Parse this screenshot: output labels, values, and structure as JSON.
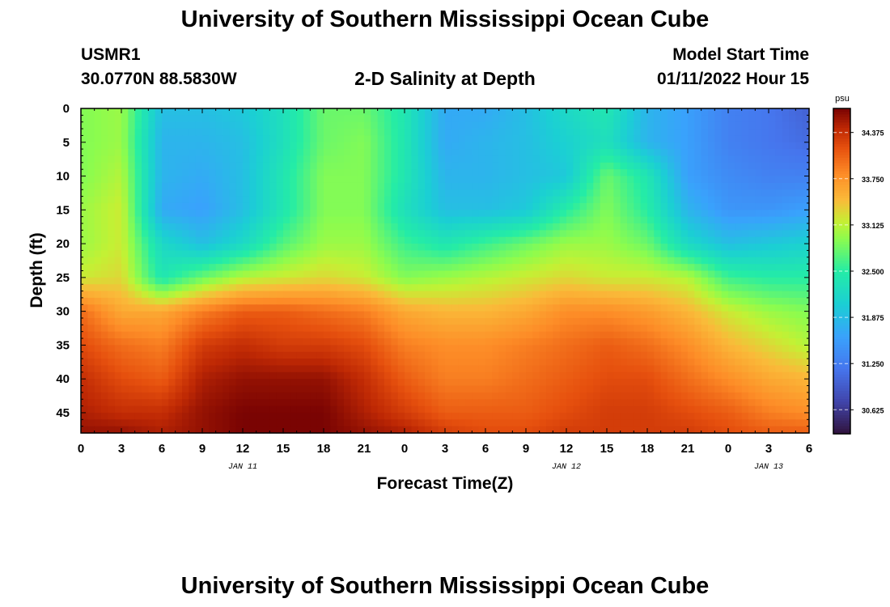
{
  "header": {
    "title": "University of Southern Mississippi Ocean Cube",
    "station_id": "USMR1",
    "location": "30.0770N  88.5830W",
    "chart_title": "2-D Salinity at Depth",
    "model_start_label": "Model Start Time",
    "model_start_value": "01/11/2022 Hour 15",
    "footer_title": "University of Southern Mississippi Ocean Cube"
  },
  "chart_data": {
    "type": "heatmap",
    "title": "2-D Salinity at Depth",
    "xlabel": "Forecast Time(Z)",
    "ylabel": "Depth (ft)",
    "x_tick_labels": [
      "0",
      "3",
      "6",
      "9",
      "12",
      "15",
      "18",
      "21",
      "0",
      "3",
      "6",
      "9",
      "12",
      "15",
      "18",
      "21",
      "0",
      "3",
      "6"
    ],
    "x_hours": [
      0,
      3,
      6,
      9,
      12,
      15,
      18,
      21,
      24,
      27,
      30,
      33,
      36,
      39,
      42,
      45,
      48,
      51,
      54
    ],
    "date_labels": [
      {
        "label": "JAN 11",
        "hour": 12
      },
      {
        "label": "JAN 12",
        "hour": 36
      },
      {
        "label": "JAN 13",
        "hour": 51
      }
    ],
    "y_tick_labels": [
      "0",
      "5",
      "10",
      "15",
      "20",
      "25",
      "30",
      "35",
      "40",
      "45"
    ],
    "y_ticks": [
      0,
      5,
      10,
      15,
      20,
      25,
      30,
      35,
      40,
      45
    ],
    "ylim": [
      0,
      48
    ],
    "xlim": [
      0,
      54
    ],
    "colorbar": {
      "unit": "psu",
      "range": [
        30.3,
        34.7
      ],
      "tick_values": [
        30.625,
        31.25,
        31.875,
        32.5,
        33.125,
        33.75,
        34.375
      ],
      "tick_labels": [
        "30.625",
        "31.250",
        "31.875",
        "32.500",
        "33.125",
        "33.750",
        "34.375"
      ]
    },
    "grid_hours": [
      0,
      3,
      6,
      9,
      12,
      15,
      18,
      21,
      24,
      27,
      30,
      33,
      36,
      39,
      42,
      45,
      48,
      51,
      54
    ],
    "grid_depths": [
      0,
      5,
      10,
      15,
      20,
      25,
      30,
      35,
      40,
      45,
      48
    ],
    "salinity": [
      [
        32.9,
        33.0,
        31.9,
        31.9,
        32.0,
        32.3,
        32.8,
        32.8,
        32.4,
        31.7,
        31.7,
        31.9,
        32.2,
        32.4,
        31.8,
        31.6,
        31.3,
        31.2,
        31.0
      ],
      [
        32.9,
        33.0,
        31.8,
        31.8,
        31.9,
        32.3,
        32.8,
        32.9,
        32.4,
        31.7,
        31.8,
        31.9,
        32.1,
        32.3,
        31.8,
        31.6,
        31.3,
        31.2,
        31.1
      ],
      [
        32.9,
        33.1,
        31.8,
        31.7,
        31.9,
        32.4,
        32.9,
        32.9,
        32.4,
        31.8,
        31.8,
        31.9,
        32.0,
        32.8,
        32.4,
        31.6,
        31.4,
        31.3,
        31.3
      ],
      [
        33.0,
        33.2,
        31.7,
        31.6,
        31.9,
        32.4,
        32.9,
        32.9,
        32.3,
        31.9,
        31.9,
        32.0,
        32.5,
        32.9,
        32.5,
        31.8,
        31.5,
        31.5,
        31.6
      ],
      [
        33.0,
        33.2,
        32.2,
        31.9,
        32.2,
        32.7,
        33.0,
        33.0,
        32.6,
        32.4,
        32.6,
        32.8,
        33.0,
        33.0,
        32.8,
        32.2,
        31.9,
        32.0,
        32.1
      ],
      [
        33.2,
        33.3,
        32.4,
        32.8,
        33.1,
        33.2,
        33.3,
        33.2,
        32.9,
        33.0,
        33.1,
        33.2,
        33.3,
        33.2,
        33.2,
        33.1,
        32.6,
        32.5,
        32.5
      ],
      [
        34.0,
        33.6,
        33.6,
        33.9,
        34.1,
        34.1,
        34.0,
        33.9,
        33.6,
        33.5,
        33.5,
        33.6,
        33.8,
        33.8,
        33.7,
        33.5,
        33.2,
        33.0,
        32.9
      ],
      [
        34.2,
        34.0,
        33.9,
        34.3,
        34.4,
        34.3,
        34.3,
        34.2,
        33.9,
        33.8,
        33.8,
        33.9,
        34.0,
        34.1,
        34.0,
        33.8,
        33.5,
        33.3,
        33.1
      ],
      [
        34.4,
        34.2,
        34.1,
        34.5,
        34.6,
        34.6,
        34.6,
        34.4,
        34.1,
        33.9,
        33.9,
        34.0,
        34.1,
        34.2,
        34.2,
        34.0,
        33.8,
        33.6,
        33.5
      ],
      [
        34.5,
        34.4,
        34.4,
        34.6,
        34.7,
        34.7,
        34.7,
        34.5,
        34.3,
        34.1,
        34.1,
        34.1,
        34.2,
        34.3,
        34.3,
        34.2,
        34.1,
        33.9,
        33.8
      ],
      [
        34.6,
        34.6,
        34.5,
        34.6,
        34.7,
        34.7,
        34.7,
        34.6,
        34.5,
        34.3,
        34.2,
        34.2,
        34.3,
        34.3,
        34.3,
        34.3,
        34.2,
        34.1,
        34.1
      ]
    ]
  }
}
